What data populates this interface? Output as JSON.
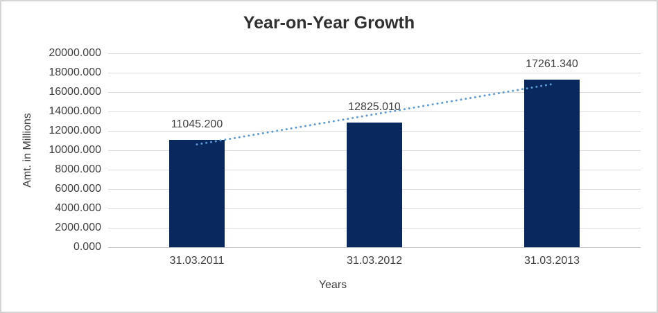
{
  "window": {
    "background": "#FFFFFF",
    "border_color": "#D4D4D4"
  },
  "chart_data": {
    "type": "bar",
    "title": "Year-on-Year Growth",
    "categories": [
      "31.03.2011",
      "31.03.2012",
      "31.03.2013"
    ],
    "values": [
      11045.2,
      12825.01,
      17261.34
    ],
    "value_labels": [
      "11045.200",
      "12825.010",
      "17261.340"
    ],
    "xlabel": "Years",
    "ylabel": "Amt. in Millions",
    "ylim": [
      0,
      20000
    ],
    "ytick_step": 2000,
    "ytick_labels": [
      "0.000",
      "2000.000",
      "4000.000",
      "6000.000",
      "8000.000",
      "10000.000",
      "12000.000",
      "14000.000",
      "16000.000",
      "18000.000",
      "20000.000"
    ],
    "grid": true,
    "legend": "none",
    "bar_color": "#08285E",
    "gridline_color": "#D9D9D9",
    "axis_line_color": "#C6C6C6",
    "text_color": "#404040",
    "title_color": "#303030",
    "trendline": {
      "type": "linear",
      "style": "dotted",
      "color": "#5B9BD5",
      "fitted_values": [
        10602.45,
        16818.59
      ]
    }
  }
}
